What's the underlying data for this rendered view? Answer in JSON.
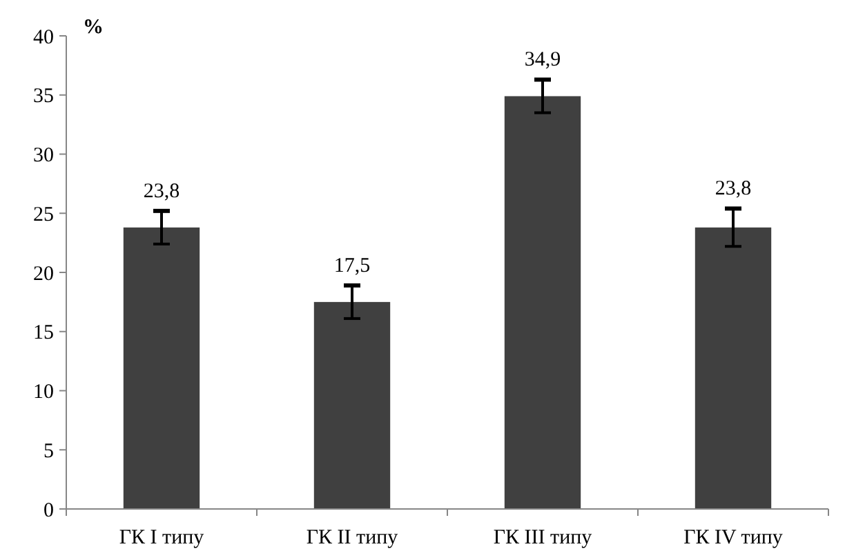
{
  "chart_data": {
    "type": "bar",
    "ylabel": "%",
    "categories": [
      "ГК I типу",
      "ГК II типу",
      "ГК III типу",
      "ГК IV типу"
    ],
    "values": [
      23.8,
      17.5,
      34.9,
      23.8
    ],
    "value_labels": [
      "23,8",
      "17,5",
      "34,9",
      "23,8"
    ],
    "errors": [
      1.4,
      1.4,
      1.4,
      1.6
    ],
    "color": "#404040",
    "ylim": [
      0,
      40
    ],
    "yticks": [
      0,
      5,
      10,
      15,
      20,
      25,
      30,
      35,
      40
    ],
    "grid": false
  }
}
